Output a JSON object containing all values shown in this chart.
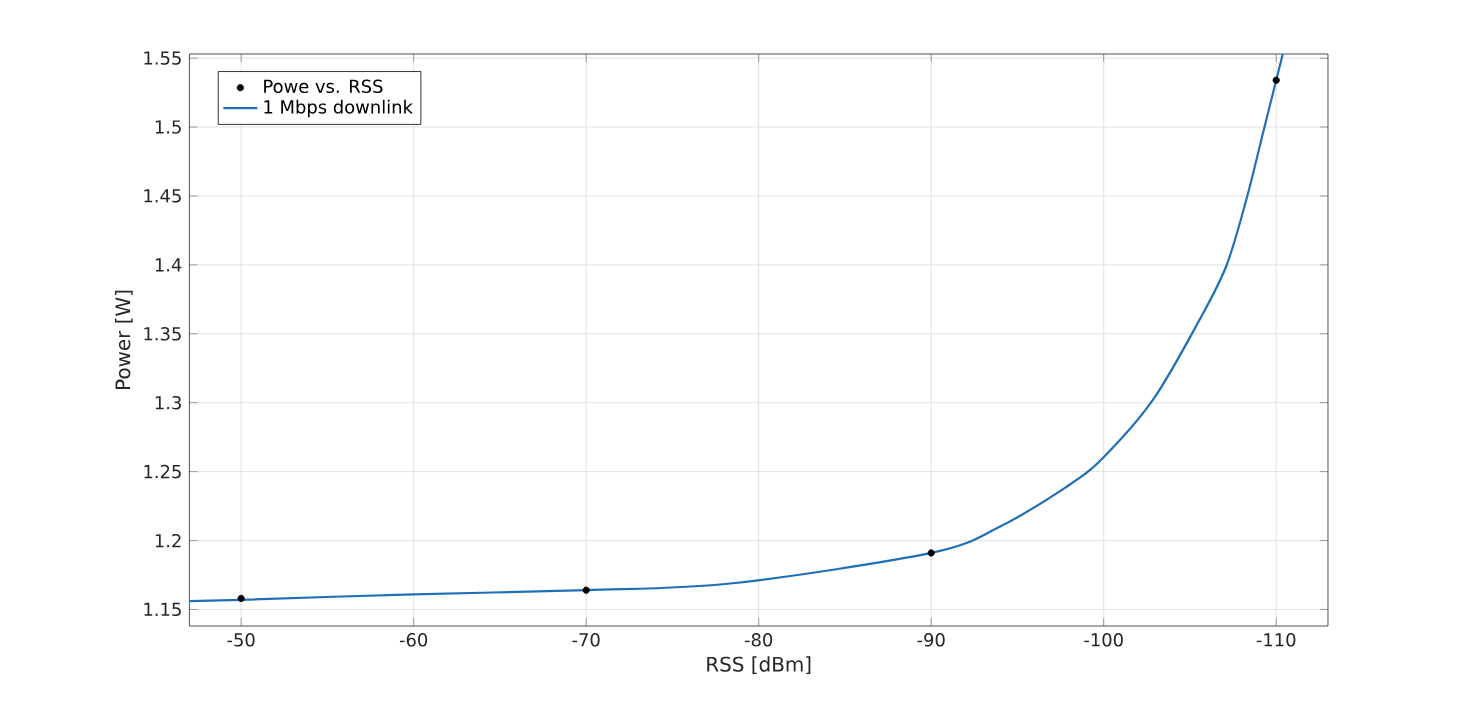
{
  "chart_data": {
    "type": "line",
    "xlabel": "RSS [dBm]",
    "ylabel": "Power [W]",
    "xlim": [
      -47,
      -113
    ],
    "ylim": [
      1.138,
      1.553
    ],
    "xticks": [
      -50,
      -60,
      -70,
      -80,
      -90,
      -100,
      -110
    ],
    "yticks": [
      1.15,
      1.2,
      1.25,
      1.3,
      1.35,
      1.4,
      1.45,
      1.5,
      1.55
    ],
    "grid": true,
    "legend": "top left",
    "series": [
      {
        "name": "Powe vs. RSS",
        "type": "scatter",
        "color": "#000000",
        "x": [
          -50,
          -70,
          -90,
          -110
        ],
        "values": [
          1.158,
          1.164,
          1.191,
          1.534
        ]
      },
      {
        "name": "1 Mbps downlink",
        "line_style": "solid",
        "color": "#1f6fb8",
        "x": [
          -47,
          -50,
          -60,
          -70,
          -78.5,
          -90,
          -93.97,
          -97.84,
          -99.88,
          -102.85,
          -105.55,
          -107.1,
          -108.26,
          -109.22,
          -110,
          -110.38
        ],
        "values": [
          1.156,
          1.157,
          1.161,
          1.164,
          1.169,
          1.191,
          1.21,
          1.239,
          1.259,
          1.302,
          1.36,
          1.399,
          1.447,
          1.495,
          1.534,
          1.553
        ]
      }
    ]
  }
}
